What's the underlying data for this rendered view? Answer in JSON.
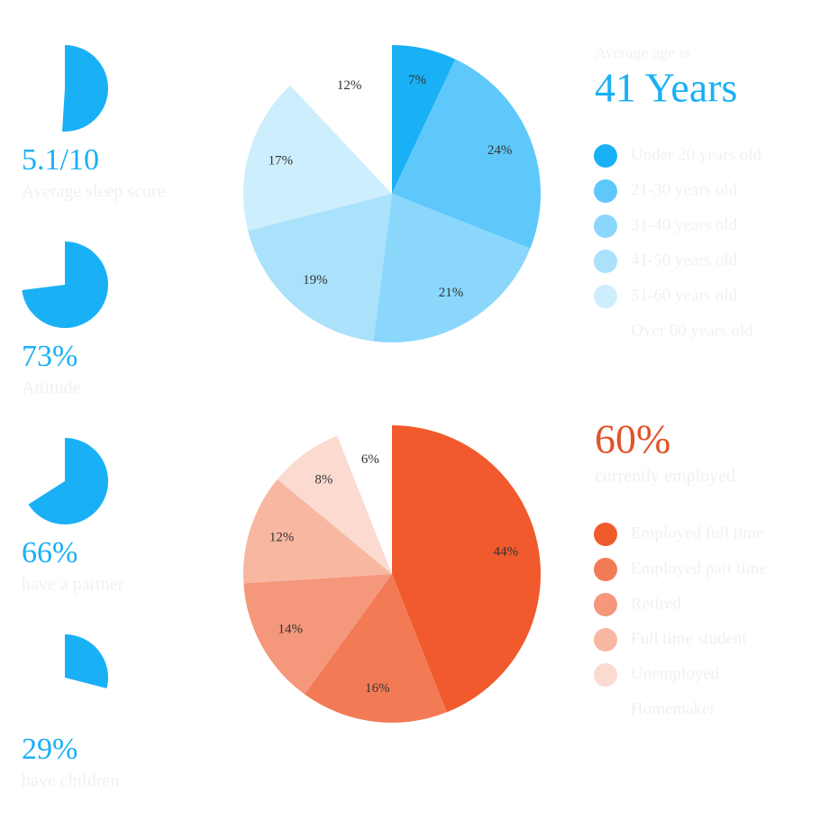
{
  "chart_data": [
    {
      "type": "mini-pie",
      "values": [
        5.1
      ],
      "total": 10,
      "value_labels": [
        "5.1/10"
      ],
      "caption": "Average sleep score",
      "color": "#1ab0f5"
    },
    {
      "type": "mini-pie",
      "values": [
        73
      ],
      "total": 100,
      "value_labels": [
        "73%"
      ],
      "caption": "Attitude",
      "color": "#1ab0f5"
    },
    {
      "type": "mini-pie",
      "values": [
        66
      ],
      "total": 100,
      "value_labels": [
        "66%"
      ],
      "caption": "have a partner",
      "color": "#1ab0f5"
    },
    {
      "type": "mini-pie",
      "values": [
        29
      ],
      "total": 100,
      "value_labels": [
        "29%"
      ],
      "caption": "have children",
      "color": "#1ab0f5"
    },
    {
      "type": "pie",
      "subtitle": "Average age is",
      "headline": "41 Years",
      "headline_color": "#1ab0f5",
      "categories": [
        "Under 20 years old",
        "21-30 years old",
        "31-40 years old",
        "41-50 years old",
        "51-60 years old",
        "Over 60 years old"
      ],
      "values": [
        7,
        24,
        21,
        19,
        17,
        12
      ],
      "value_labels": [
        "7%",
        "24%",
        "21%",
        "19%",
        "17%",
        "12%"
      ],
      "colors": [
        "#1ab0f5",
        "#5ec8fb",
        "#8bd7fc",
        "#aae1fb",
        "#cdeefc",
        "#ffffff"
      ]
    },
    {
      "type": "pie",
      "headline": "60%",
      "subtitle": "currently employed",
      "headline_color": "#e2542a",
      "categories": [
        "Employed full time",
        "Employed part time",
        "Retired",
        "Full time student",
        "Unemployed",
        "Homemaker"
      ],
      "values": [
        44,
        16,
        14,
        12,
        8,
        6
      ],
      "value_labels": [
        "44%",
        "16%",
        "14%",
        "12%",
        "8%",
        "6%"
      ],
      "colors": [
        "#f05a2c",
        "#f27b55",
        "#f4977b",
        "#f7b7a1",
        "#fbdad0",
        "#ffffff"
      ]
    }
  ]
}
